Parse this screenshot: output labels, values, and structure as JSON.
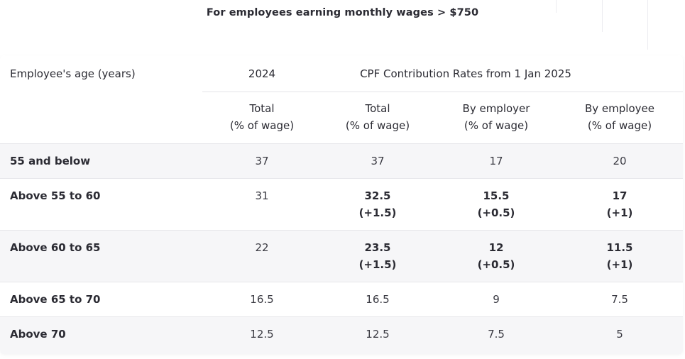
{
  "caption": "For employees earning monthly wages > $750",
  "headers": {
    "age": "Employee's age (years)",
    "year_2024": "2024",
    "cpf_group": "CPF Contribution Rates from 1 Jan 2025",
    "sub": [
      {
        "line1": "Total",
        "line2": "(% of wage)"
      },
      {
        "line1": "Total",
        "line2": "(% of wage)"
      },
      {
        "line1": "By employer",
        "line2": "(% of wage)"
      },
      {
        "line1": "By employee",
        "line2": "(% of wage)"
      }
    ]
  },
  "rows": [
    {
      "age": "55 and below",
      "total_2024": "37",
      "total_2025": {
        "value": "37",
        "change": ""
      },
      "employer": {
        "value": "17",
        "change": ""
      },
      "employee": {
        "value": "20",
        "change": ""
      }
    },
    {
      "age": "Above 55 to 60",
      "total_2024": "31",
      "total_2025": {
        "value": "32.5",
        "change": "(+1.5)"
      },
      "employer": {
        "value": "15.5",
        "change": "(+0.5)"
      },
      "employee": {
        "value": "17",
        "change": "(+1)"
      }
    },
    {
      "age": "Above 60 to 65",
      "total_2024": "22",
      "total_2025": {
        "value": "23.5",
        "change": "(+1.5)"
      },
      "employer": {
        "value": "12",
        "change": "(+0.5)"
      },
      "employee": {
        "value": "11.5",
        "change": "(+1)"
      }
    },
    {
      "age": "Above 65 to 70",
      "total_2024": "16.5",
      "total_2025": {
        "value": "16.5",
        "change": ""
      },
      "employer": {
        "value": "9",
        "change": ""
      },
      "employee": {
        "value": "7.5",
        "change": ""
      }
    },
    {
      "age": "Above 70",
      "total_2024": "12.5",
      "total_2025": {
        "value": "12.5",
        "change": ""
      },
      "employer": {
        "value": "7.5",
        "change": ""
      },
      "employee": {
        "value": "5",
        "change": ""
      }
    }
  ]
}
